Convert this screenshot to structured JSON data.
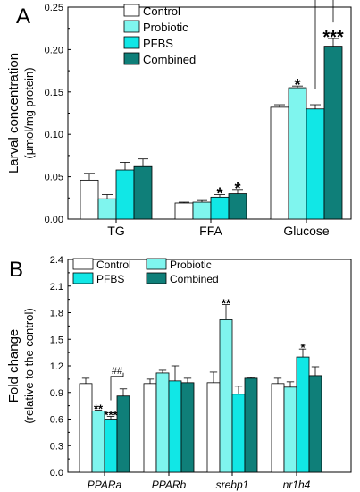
{
  "chart_data": [
    {
      "type": "bar",
      "panel_label": "A",
      "ylabel_line1": "Larval concentration",
      "ylabel_line2": "(μmol/mg protein)",
      "ylim": [
        0,
        0.25
      ],
      "yticks": [
        "0.00",
        "0.05",
        "0.10",
        "0.15",
        "0.20",
        "0.25"
      ],
      "ytick_values": [
        0,
        0.05,
        0.1,
        0.15,
        0.2,
        0.25
      ],
      "categories": [
        "TG",
        "FFA",
        "Glucose"
      ],
      "series": [
        {
          "name": "Control",
          "color": "#ffffff",
          "values": [
            0.046,
            0.019,
            0.132
          ],
          "errors": [
            0.008,
            0.001,
            0.003
          ]
        },
        {
          "name": "Probiotic",
          "color": "#7ff5ee",
          "values": [
            0.024,
            0.02,
            0.155
          ],
          "errors": [
            0.005,
            0.002,
            0.002
          ]
        },
        {
          "name": "PFBS",
          "color": "#11e7e6",
          "values": [
            0.058,
            0.026,
            0.13
          ],
          "errors": [
            0.009,
            0.003,
            0.005
          ]
        },
        {
          "name": "Combined",
          "color": "#0f7f79",
          "values": [
            0.062,
            0.03,
            0.204
          ],
          "errors": [
            0.009,
            0.005,
            0.009
          ]
        }
      ],
      "legend_position": "top-center",
      "annotations": [
        {
          "text": "*",
          "category": "FFA",
          "series": "PFBS"
        },
        {
          "text": "*",
          "category": "FFA",
          "series": "Combined"
        },
        {
          "text": "*",
          "category": "Glucose",
          "series": "Probiotic"
        },
        {
          "text": "***",
          "category": "Glucose",
          "series": "Combined"
        },
        {
          "text": "###",
          "category": "Glucose",
          "bracket": [
            "PFBS",
            "Combined"
          ]
        }
      ]
    },
    {
      "type": "bar",
      "panel_label": "B",
      "ylabel_line1": "Fold change",
      "ylabel_line2": "(relative to the control)",
      "ylim": [
        0,
        2.4
      ],
      "yticks": [
        "0.0",
        "0.3",
        "0.6",
        "0.9",
        "1.2",
        "1.5",
        "1.8",
        "2.1",
        "2.4"
      ],
      "ytick_values": [
        0,
        0.3,
        0.6,
        0.9,
        1.2,
        1.5,
        1.8,
        2.1,
        2.4
      ],
      "categories": [
        "PPARa",
        "PPARb",
        "srebp1",
        "nr1h4"
      ],
      "series": [
        {
          "name": "Control",
          "color": "#ffffff",
          "values": [
            1.0,
            1.0,
            1.01,
            1.0
          ],
          "errors": [
            0.06,
            0.05,
            0.12,
            0.06
          ]
        },
        {
          "name": "Probiotic",
          "color": "#7ff5ee",
          "values": [
            0.69,
            1.12,
            1.72,
            0.96
          ],
          "errors": [
            0.01,
            0.03,
            0.17,
            0.06
          ]
        },
        {
          "name": "PFBS",
          "color": "#11e7e6",
          "values": [
            0.6,
            1.03,
            0.88,
            1.3
          ],
          "errors": [
            0.03,
            0.17,
            0.09,
            0.09
          ]
        },
        {
          "name": "Combined",
          "color": "#0f7f79",
          "values": [
            0.86,
            1.01,
            1.06,
            1.09
          ],
          "errors": [
            0.08,
            0.05,
            0.01,
            0.1
          ]
        }
      ],
      "legend_position": "top-center",
      "annotations": [
        {
          "text": "**",
          "category": "PPARa",
          "series": "Probiotic"
        },
        {
          "text": "***",
          "category": "PPARa",
          "series": "PFBS"
        },
        {
          "text": "##",
          "category": "PPARa",
          "bracket": [
            "PFBS",
            "Combined"
          ]
        },
        {
          "text": "**",
          "category": "srebp1",
          "series": "Probiotic"
        },
        {
          "text": "*",
          "category": "nr1h4",
          "series": "PFBS"
        }
      ]
    }
  ]
}
